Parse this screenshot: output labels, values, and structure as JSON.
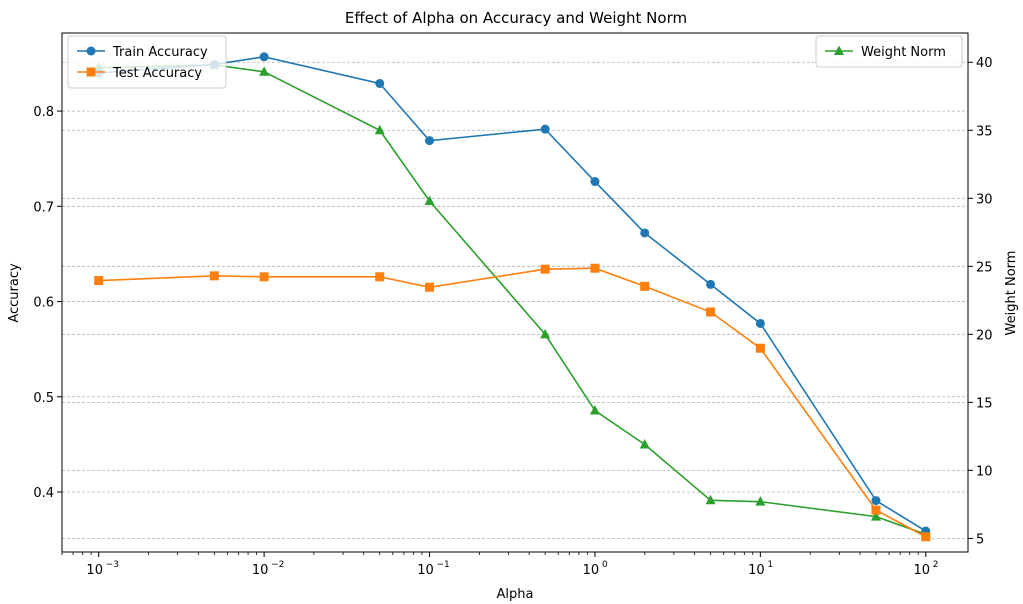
{
  "chart_data": {
    "type": "line",
    "title": "Effect of Alpha on Accuracy and Weight Norm",
    "xlabel": "Alpha",
    "ylabel_left": "Accuracy",
    "ylabel_right": "Weight Norm",
    "x_scale": "log",
    "x": [
      0.001,
      0.005,
      0.01,
      0.05,
      0.1,
      0.5,
      1,
      2,
      5,
      10,
      50,
      100
    ],
    "x_range": [
      0.0006,
      180
    ],
    "x_ticks": [
      0.001,
      0.01,
      0.1,
      1,
      10,
      100
    ],
    "x_tick_labels": [
      {
        "base": "10",
        "exp": "−3"
      },
      {
        "base": "10",
        "exp": "−2"
      },
      {
        "base": "10",
        "exp": "−1"
      },
      {
        "base": "10",
        "exp": "0"
      },
      {
        "base": "10",
        "exp": "1"
      },
      {
        "base": "10",
        "exp": "2"
      }
    ],
    "left_axis": {
      "range": [
        0.337,
        0.882
      ],
      "ticks": [
        0.4,
        0.5,
        0.6,
        0.7,
        0.8
      ],
      "tick_labels": [
        "0.4",
        "0.5",
        "0.6",
        "0.7",
        "0.8"
      ]
    },
    "right_axis": {
      "range": [
        4.0,
        42.15
      ],
      "ticks": [
        5,
        10,
        15,
        20,
        25,
        30,
        35,
        40
      ],
      "tick_labels": [
        "5",
        "10",
        "15",
        "20",
        "25",
        "30",
        "35",
        "40"
      ]
    },
    "grid": "y-dashed",
    "series": [
      {
        "name": "Train Accuracy",
        "axis": "left",
        "color": "#1f77b4",
        "marker": "circle",
        "values": [
          0.84,
          0.849,
          0.857,
          0.829,
          0.769,
          0.781,
          0.726,
          0.672,
          0.618,
          0.577,
          0.391,
          0.359
        ]
      },
      {
        "name": "Test Accuracy",
        "axis": "left",
        "color": "#ff7f0e",
        "marker": "square",
        "values": [
          0.622,
          0.627,
          0.626,
          0.626,
          0.615,
          0.634,
          0.635,
          0.616,
          0.589,
          0.551,
          0.381,
          0.353
        ]
      },
      {
        "name": "Weight Norm",
        "axis": "right",
        "color": "#2ca02c",
        "marker": "triangle",
        "values": [
          39.6,
          39.8,
          39.3,
          35.0,
          29.8,
          20.0,
          14.4,
          11.9,
          7.8,
          7.7,
          6.6,
          5.3
        ]
      }
    ],
    "legend_left": {
      "placement": "upper-left",
      "entries": [
        "Train Accuracy",
        "Test Accuracy"
      ]
    },
    "legend_right": {
      "placement": "upper-right",
      "entries": [
        "Weight Norm"
      ]
    }
  }
}
